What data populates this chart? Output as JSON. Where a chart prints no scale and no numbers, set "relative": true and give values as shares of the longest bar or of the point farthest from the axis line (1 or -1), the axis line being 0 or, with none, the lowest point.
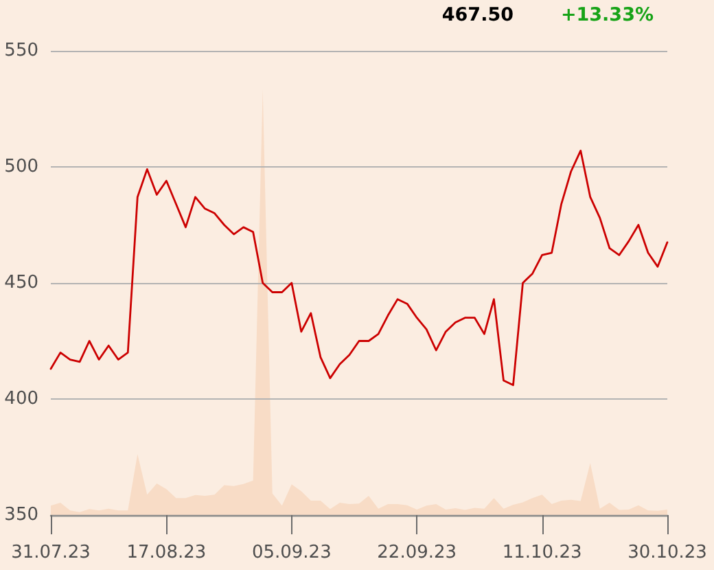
{
  "chart_data": [
    {
      "type": "line",
      "annotations": [
        "467.50",
        "+13.33%"
      ],
      "categories": [
        "31.07.23",
        null,
        null,
        null,
        null,
        null,
        null,
        null,
        null,
        null,
        null,
        null,
        "17.08.23",
        null,
        null,
        null,
        null,
        null,
        null,
        null,
        null,
        null,
        null,
        null,
        null,
        "05.09.23",
        null,
        null,
        null,
        null,
        null,
        null,
        null,
        null,
        null,
        null,
        null,
        null,
        "22.09.23",
        null,
        null,
        null,
        null,
        null,
        null,
        null,
        null,
        null,
        null,
        null,
        null,
        "11.10.23",
        null,
        null,
        null,
        null,
        null,
        null,
        null,
        null,
        null,
        null,
        null,
        null,
        "30.10.23"
      ],
      "series": [
        {
          "color": "#cc0000",
          "values": [
            413,
            420,
            417,
            416,
            425,
            417,
            423,
            417,
            420,
            487,
            499,
            488,
            494,
            484,
            474,
            487,
            482,
            480,
            475,
            471,
            474,
            472,
            450,
            446,
            446,
            450,
            429,
            437,
            418,
            409,
            415,
            419,
            425,
            425,
            428,
            436,
            443,
            441,
            435,
            430,
            421,
            429,
            433,
            435,
            435,
            428,
            443,
            408,
            406,
            450,
            454,
            462,
            463,
            484,
            498,
            507,
            487,
            478,
            465,
            462,
            468,
            475,
            463,
            457,
            467.5
          ]
        }
      ],
      "ylim": [
        350,
        550
      ],
      "yticks": [
        350,
        400,
        450,
        500,
        550
      ],
      "grid": "y",
      "marker": "none"
    },
    {
      "type": "area",
      "relative": true,
      "categories": [
        "31.07.23",
        null,
        null,
        null,
        null,
        null,
        null,
        null,
        null,
        null,
        null,
        null,
        "17.08.23",
        null,
        null,
        null,
        null,
        null,
        null,
        null,
        null,
        null,
        null,
        null,
        null,
        "05.09.23",
        null,
        null,
        null,
        null,
        null,
        null,
        null,
        null,
        null,
        null,
        null,
        null,
        "22.09.23",
        null,
        null,
        null,
        null,
        null,
        null,
        null,
        null,
        null,
        null,
        null,
        null,
        "11.10.23",
        null,
        null,
        null,
        null,
        null,
        null,
        null,
        null,
        null,
        null,
        null,
        null,
        "30.10.23"
      ],
      "series": [
        {
          "color": "#f8dcc6",
          "values": [
            0.022,
            0.029,
            0.011,
            0.007,
            0.014,
            0.011,
            0.015,
            0.011,
            0.011,
            0.143,
            0.048,
            0.074,
            0.061,
            0.04,
            0.04,
            0.047,
            0.045,
            0.048,
            0.07,
            0.068,
            0.073,
            0.081,
            1,
            0.051,
            0.022,
            0.072,
            0.056,
            0.034,
            0.034,
            0.014,
            0.029,
            0.026,
            0.027,
            0.045,
            0.015,
            0.026,
            0.026,
            0.023,
            0.013,
            0.022,
            0.026,
            0.013,
            0.016,
            0.012,
            0.017,
            0.015,
            0.04,
            0.015,
            0.024,
            0.03,
            0.04,
            0.048,
            0.026,
            0.034,
            0.036,
            0.033,
            0.122,
            0.015,
            0.029,
            0.012,
            0.013,
            0.023,
            0.011,
            0.01,
            0.013
          ]
        }
      ],
      "tick_labels": false,
      "marker": "none"
    }
  ]
}
